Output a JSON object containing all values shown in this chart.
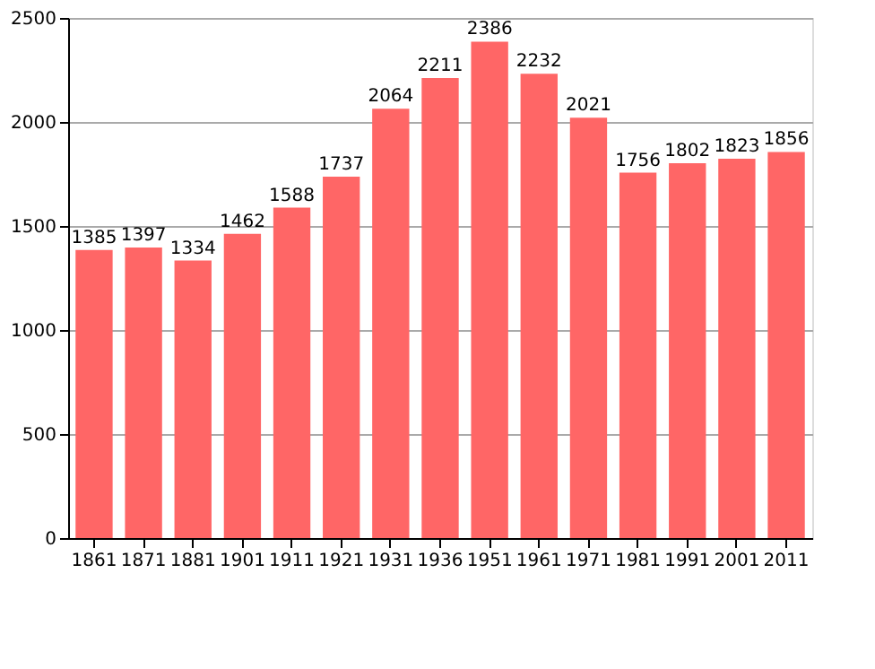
{
  "chart_data": {
    "type": "bar",
    "categories": [
      "1861",
      "1871",
      "1881",
      "1901",
      "1911",
      "1921",
      "1931",
      "1936",
      "1951",
      "1961",
      "1971",
      "1981",
      "1991",
      "2001",
      "2011"
    ],
    "values": [
      1385,
      1397,
      1334,
      1462,
      1588,
      1737,
      2064,
      2211,
      2386,
      2232,
      2021,
      1756,
      1802,
      1823,
      1856
    ],
    "color": "#ff6666",
    "ylim": [
      0,
      2500
    ],
    "yticks": [
      0,
      500,
      1000,
      1500,
      2000,
      2500
    ],
    "grid": "y",
    "data_labels": true
  }
}
